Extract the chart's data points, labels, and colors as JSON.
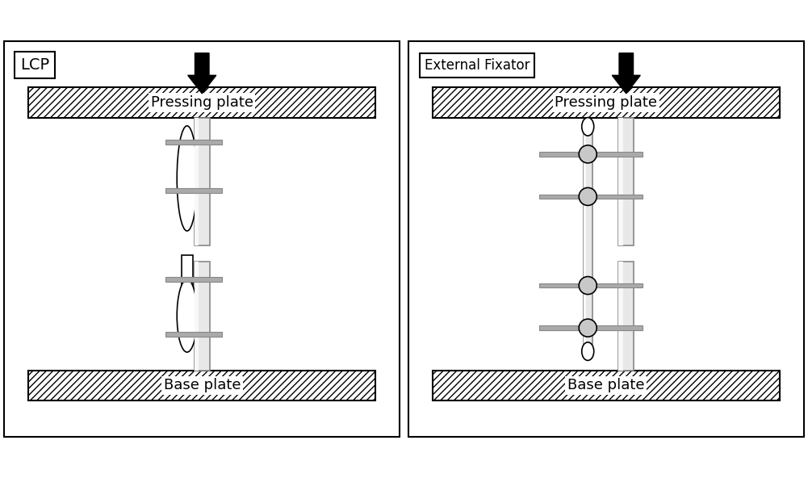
{
  "fig_width": 10.01,
  "fig_height": 5.92,
  "bg_color": "#ffffff",
  "panel_left_label": "LCP",
  "panel_right_label": "External Fixator",
  "pressing_plate_label": "Pressing plate",
  "base_plate_label": "Base plate",
  "hatch_pattern": "////",
  "plate_edge_color": "#000000",
  "rod_fill": "#e8e8e8",
  "rod_edge": "#888888",
  "rod_highlight": "#f8f8f8",
  "pin_fill": "#aaaaaa",
  "pin_edge": "#888888",
  "circle_fill": "#c8c8c8",
  "arrow_color": "#000000",
  "label_color": "#000000",
  "border_lw": 1.5
}
